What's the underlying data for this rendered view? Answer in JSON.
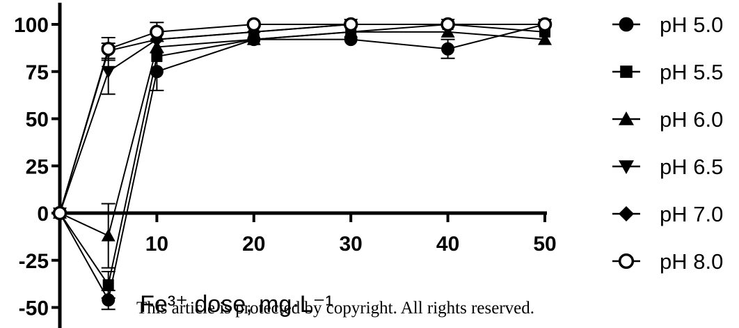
{
  "chart_data": {
    "type": "line",
    "xlabel": "Fe³⁺ dose, mg·L⁻¹",
    "ylabel": "",
    "xlim": [
      0,
      50
    ],
    "ylim": [
      -55,
      110
    ],
    "x_ticks": [
      10,
      20,
      30,
      40,
      50
    ],
    "y_ticks": [
      -50,
      -25,
      0,
      25,
      50,
      75,
      100
    ],
    "legend_position": "right",
    "grid": false,
    "series": [
      {
        "name": "pH 5.0",
        "marker": "circle-filled",
        "x": [
          0,
          5,
          10,
          20,
          30,
          40,
          50
        ],
        "y": [
          0,
          -46,
          75,
          92,
          92,
          87,
          100
        ],
        "err": [
          0,
          5,
          10,
          0,
          0,
          5,
          0
        ]
      },
      {
        "name": "pH 5.5",
        "marker": "square",
        "x": [
          0,
          5,
          10,
          20,
          30,
          40,
          50
        ],
        "y": [
          0,
          -38,
          83,
          92,
          96,
          100,
          96
        ],
        "err": [
          0,
          7,
          0,
          0,
          0,
          0,
          0
        ]
      },
      {
        "name": "pH 6.0",
        "marker": "triangle-up",
        "x": [
          0,
          5,
          10,
          20,
          30,
          40,
          50
        ],
        "y": [
          0,
          -12,
          88,
          92,
          96,
          96,
          92
        ],
        "err": [
          0,
          17,
          0,
          0,
          0,
          0,
          0
        ]
      },
      {
        "name": "pH 6.5",
        "marker": "triangle-down",
        "x": [
          0,
          5,
          10,
          20,
          30,
          40,
          50
        ],
        "y": [
          0,
          75,
          92,
          96,
          100,
          100,
          100
        ],
        "err": [
          0,
          12,
          0,
          0,
          0,
          0,
          0
        ]
      },
      {
        "name": "pH 7.0",
        "marker": "diamond",
        "x": [
          0,
          5,
          10,
          20,
          30,
          40,
          50
        ],
        "y": [
          0,
          86,
          92,
          96,
          100,
          100,
          100
        ],
        "err": [
          0,
          4,
          0,
          0,
          0,
          0,
          0
        ]
      },
      {
        "name": "pH 8.0",
        "marker": "circle-open",
        "x": [
          0,
          5,
          10,
          20,
          30,
          40,
          50
        ],
        "y": [
          0,
          87,
          96,
          100,
          100,
          100,
          100
        ],
        "err": [
          0,
          6,
          5,
          0,
          0,
          0,
          0
        ]
      }
    ]
  },
  "footer": {
    "copyright": "This article is protected by copyright. All rights reserved."
  },
  "colors": {
    "ink": "#000000",
    "background": "#ffffff"
  }
}
